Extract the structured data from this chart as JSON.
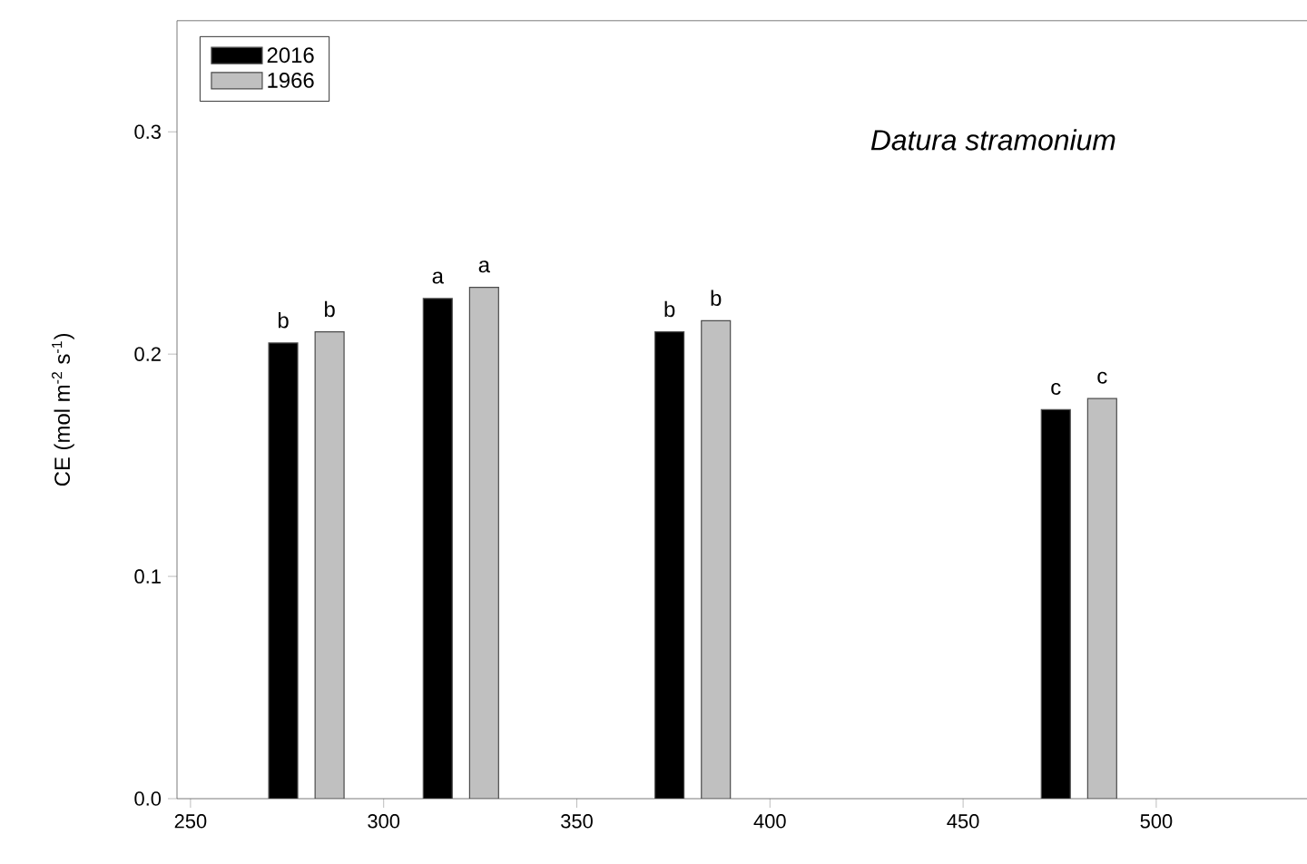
{
  "chart_data": {
    "type": "bar",
    "title": "Datura stramonium",
    "ylabel": "CE (mol m$^{-2}$ s$^{-1}$)",
    "series": [
      {
        "name": "2016",
        "color": "#000000",
        "x": [
          274,
          314,
          374,
          474
        ],
        "values": [
          0.205,
          0.225,
          0.21,
          0.175
        ]
      },
      {
        "name": "1966",
        "color": "#c0c0c0",
        "x": [
          286,
          326,
          386,
          486
        ],
        "values": [
          0.21,
          0.23,
          0.215,
          0.18
        ]
      }
    ],
    "xlim": [
      246.5,
      540
    ],
    "ylim": [
      0,
      0.35
    ],
    "xticks": [
      250,
      300,
      350,
      400,
      450,
      500
    ],
    "yticks": [
      {
        "value": 0,
        "label": "0.0"
      },
      {
        "value": 0.1,
        "label": "0.1"
      },
      {
        "value": 0.2,
        "label": "0.2"
      },
      {
        "value": 0.3,
        "label": "0.3"
      }
    ],
    "legend": "top left",
    "grid": false,
    "annotations": [
      {
        "text": "b",
        "x": 274,
        "y": 0.205
      },
      {
        "text": "b",
        "x": 286,
        "y": 0.21
      },
      {
        "text": "a",
        "x": 314,
        "y": 0.225
      },
      {
        "text": "a",
        "x": 326,
        "y": 0.23
      },
      {
        "text": "b",
        "x": 374,
        "y": 0.21
      },
      {
        "text": "b",
        "x": 386,
        "y": 0.215
      },
      {
        "text": "c",
        "x": 474,
        "y": 0.175
      },
      {
        "text": "c",
        "x": 486,
        "y": 0.18
      }
    ]
  }
}
